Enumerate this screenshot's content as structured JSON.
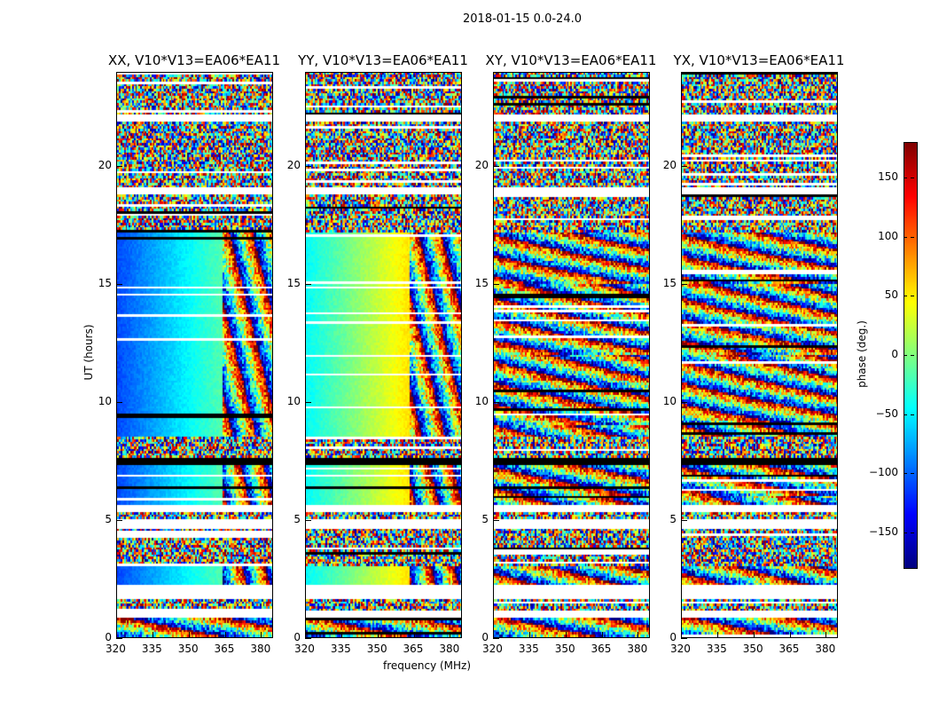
{
  "chart_data": {
    "type": "heatmap",
    "title": "2018-01-15 0.0-24.0",
    "xlabel": "frequency (MHz)",
    "ylabel": "UT (hours)",
    "xlim": [
      320,
      385
    ],
    "ylim": [
      0,
      24
    ],
    "xticks": [
      320,
      335,
      350,
      365,
      380
    ],
    "yticks": [
      0,
      5,
      10,
      15,
      20
    ],
    "colorbar": {
      "label": "phase (deg.)",
      "range": [
        -180,
        180
      ],
      "ticks": [
        -150,
        -100,
        -50,
        0,
        50,
        100,
        150
      ],
      "colormap": "jet"
    },
    "panels": [
      {
        "title": "XX, V10*V13=EA06*EA11",
        "coherent": true,
        "phase_start": -110,
        "phase_end": -15,
        "cutoff_mhz": 364
      },
      {
        "title": "YY, V10*V13=EA06*EA11",
        "coherent": true,
        "phase_start": -45,
        "phase_end": 55,
        "cutoff_mhz": 363
      },
      {
        "title": "XY, V10*V13=EA06*EA11",
        "coherent": false
      },
      {
        "title": "YX, V10*V13=EA06*EA11",
        "coherent": false
      }
    ],
    "time_segments_hours": [
      {
        "from": 0,
        "to": 0.8,
        "kind": "fringe"
      },
      {
        "from": 0.8,
        "to": 1.1,
        "kind": "flagged"
      },
      {
        "from": 1.1,
        "to": 1.6,
        "kind": "noise"
      },
      {
        "from": 1.6,
        "to": 2.2,
        "kind": "flagged"
      },
      {
        "from": 2.2,
        "to": 3.0,
        "kind": "coherent"
      },
      {
        "from": 3.0,
        "to": 4.6,
        "kind": "noise"
      },
      {
        "from": 4.6,
        "to": 5.0,
        "kind": "flagged"
      },
      {
        "from": 5.0,
        "to": 5.3,
        "kind": "noise"
      },
      {
        "from": 5.3,
        "to": 5.6,
        "kind": "flagged"
      },
      {
        "from": 5.6,
        "to": 7.3,
        "kind": "coherent"
      },
      {
        "from": 7.3,
        "to": 7.6,
        "kind": "black"
      },
      {
        "from": 7.6,
        "to": 8.5,
        "kind": "noise"
      },
      {
        "from": 8.5,
        "to": 17.2,
        "kind": "coherent"
      },
      {
        "from": 17.2,
        "to": 18.8,
        "kind": "noise"
      },
      {
        "from": 18.8,
        "to": 19.1,
        "kind": "flagged"
      },
      {
        "from": 19.1,
        "to": 21.9,
        "kind": "noise"
      },
      {
        "from": 21.9,
        "to": 22.2,
        "kind": "flagged"
      },
      {
        "from": 22.2,
        "to": 24,
        "kind": "noise"
      }
    ]
  }
}
